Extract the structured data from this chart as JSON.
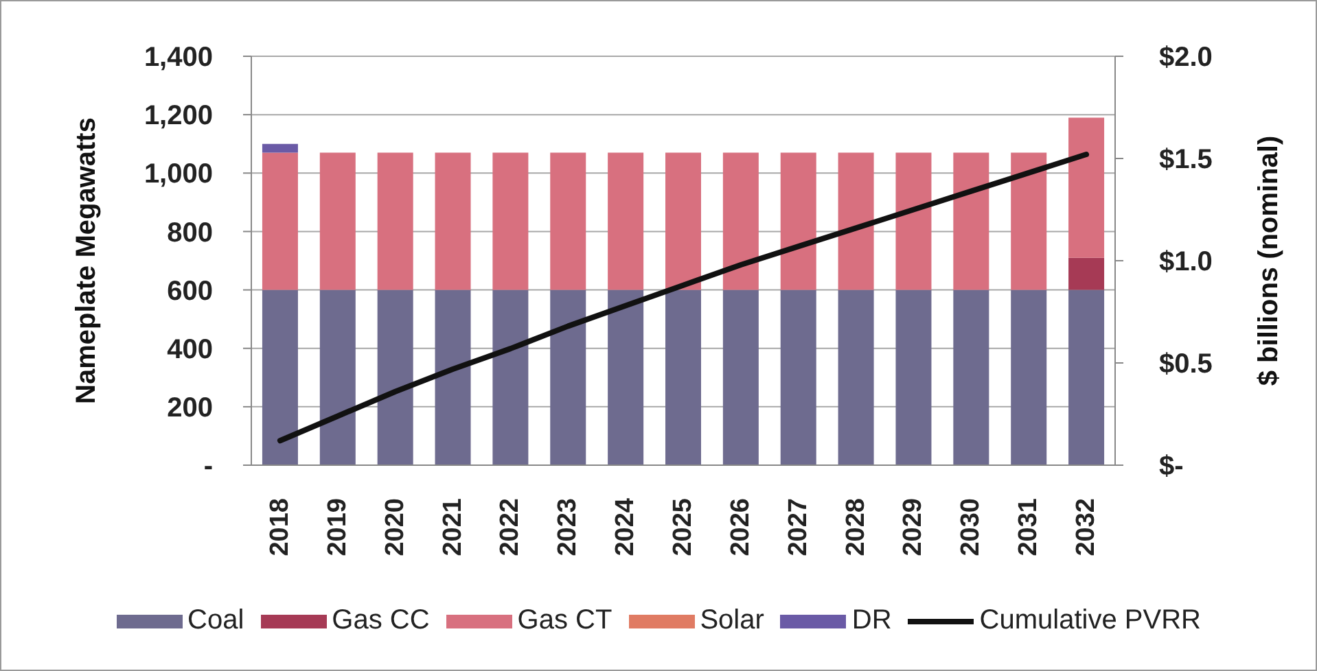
{
  "chart_data": {
    "type": "bar",
    "stacked": true,
    "ylabel": "Nameplate Megawatts",
    "y2label": "$ billions (nominal)",
    "categories": [
      "2018",
      "2019",
      "2020",
      "2021",
      "2022",
      "2023",
      "2024",
      "2025",
      "2026",
      "2027",
      "2028",
      "2029",
      "2030",
      "2031",
      "2032"
    ],
    "series": [
      {
        "name": "Coal",
        "color": "#6e6b8f",
        "values": [
          600,
          600,
          600,
          600,
          600,
          600,
          600,
          600,
          600,
          600,
          600,
          600,
          600,
          600,
          600
        ]
      },
      {
        "name": "Gas CC",
        "color": "#a63a55",
        "values": [
          0,
          0,
          0,
          0,
          0,
          0,
          0,
          0,
          0,
          0,
          0,
          0,
          0,
          0,
          110
        ]
      },
      {
        "name": "Gas CT",
        "color": "#d8707f",
        "values": [
          470,
          470,
          470,
          470,
          470,
          470,
          470,
          470,
          470,
          470,
          470,
          470,
          470,
          470,
          480
        ]
      },
      {
        "name": "Solar",
        "color": "#e07b63",
        "values": [
          0,
          0,
          0,
          0,
          0,
          0,
          0,
          0,
          0,
          0,
          0,
          0,
          0,
          0,
          0
        ]
      },
      {
        "name": "DR",
        "color": "#6a5aa6",
        "values": [
          30,
          0,
          0,
          0,
          0,
          0,
          0,
          0,
          0,
          0,
          0,
          0,
          0,
          0,
          0
        ]
      },
      {
        "name": "Cumulative PVRR",
        "type": "line",
        "axis": "y2",
        "color": "#111111",
        "values": [
          0.12,
          0.24,
          0.36,
          0.47,
          0.57,
          0.68,
          0.78,
          0.88,
          0.98,
          1.07,
          1.16,
          1.25,
          1.34,
          1.43,
          1.52
        ]
      }
    ],
    "ylim": [
      0,
      1400
    ],
    "yticks": [
      {
        "value": 0,
        "label": "-"
      },
      200,
      400,
      600,
      800,
      {
        "value": 1000,
        "label": "1,000"
      },
      {
        "value": 1200,
        "label": "1,200"
      },
      {
        "value": 1400,
        "label": "1,400"
      }
    ],
    "y2lim": [
      0,
      2
    ],
    "y2ticks": [
      {
        "value": 0,
        "label": "$-"
      },
      {
        "value": 0.5,
        "label": "$0.5"
      },
      {
        "value": 1,
        "label": "$1.0"
      },
      {
        "value": 1.5,
        "label": "$1.5"
      },
      {
        "value": 2,
        "label": "$2.0"
      }
    ],
    "grid": "y",
    "legend": "bottom",
    "marker": "none",
    "line_style": "solid"
  }
}
